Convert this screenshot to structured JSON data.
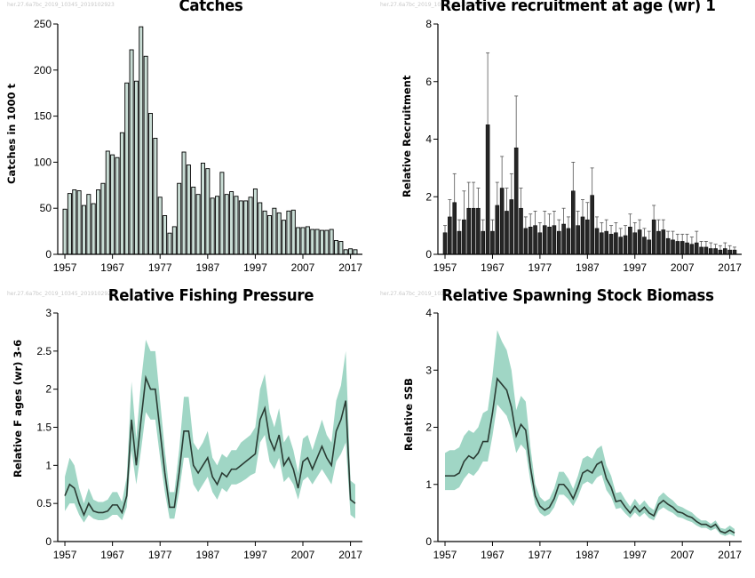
{
  "watermark": "her.27.6a7bc_2019_10345_2019102923",
  "chart_data": [
    {
      "id": "catches",
      "type": "bar",
      "title": "Catches",
      "ylabel": "Catches in 1000 t",
      "xlabel": "",
      "ylim": [
        0,
        250
      ],
      "yticks": [
        "0",
        "50",
        "100",
        "150",
        "200",
        "250"
      ],
      "xticks": [
        "1957",
        "1967",
        "1977",
        "1987",
        "1997",
        "2007",
        "2017"
      ],
      "x": [
        1957,
        1958,
        1959,
        1960,
        1961,
        1962,
        1963,
        1964,
        1965,
        1966,
        1967,
        1968,
        1969,
        1970,
        1971,
        1972,
        1973,
        1974,
        1975,
        1976,
        1977,
        1978,
        1979,
        1980,
        1981,
        1982,
        1983,
        1984,
        1985,
        1986,
        1987,
        1988,
        1989,
        1990,
        1991,
        1992,
        1993,
        1994,
        1995,
        1996,
        1997,
        1998,
        1999,
        2000,
        2001,
        2002,
        2003,
        2004,
        2005,
        2006,
        2007,
        2008,
        2009,
        2010,
        2011,
        2012,
        2013,
        2014,
        2015,
        2016,
        2017,
        2018
      ],
      "values": [
        49,
        66,
        70,
        69,
        53,
        65,
        55,
        70,
        77,
        112,
        108,
        105,
        132,
        186,
        222,
        188,
        247,
        215,
        153,
        126,
        62,
        42,
        23,
        30,
        77,
        111,
        97,
        73,
        65,
        99,
        93,
        61,
        63,
        89,
        65,
        68,
        63,
        58,
        58,
        62,
        71,
        56,
        47,
        42,
        50,
        45,
        37,
        47,
        48,
        29,
        29,
        30,
        27,
        27,
        26,
        26,
        27,
        15,
        14,
        5,
        6,
        5
      ],
      "color": "#0a0a0a"
    },
    {
      "id": "recruitment",
      "type": "bar",
      "title": "Relative recruitment at age (wr) 1",
      "ylabel": "Relative Recruitment",
      "xlabel": "",
      "ylim": [
        0,
        8
      ],
      "yticks": [
        "0",
        "2",
        "4",
        "6",
        "8"
      ],
      "xticks": [
        "1957",
        "1967",
        "1977",
        "1987",
        "1997",
        "2007",
        "2017"
      ],
      "x": [
        1957,
        1958,
        1959,
        1960,
        1961,
        1962,
        1963,
        1964,
        1965,
        1966,
        1967,
        1968,
        1969,
        1970,
        1971,
        1972,
        1973,
        1974,
        1975,
        1976,
        1977,
        1978,
        1979,
        1980,
        1981,
        1982,
        1983,
        1984,
        1985,
        1986,
        1987,
        1988,
        1989,
        1990,
        1991,
        1992,
        1993,
        1994,
        1995,
        1996,
        1997,
        1998,
        1999,
        2000,
        2001,
        2002,
        2003,
        2004,
        2005,
        2006,
        2007,
        2008,
        2009,
        2010,
        2011,
        2012,
        2013,
        2014,
        2015,
        2016,
        2017,
        2018
      ],
      "values": [
        0.75,
        1.3,
        1.8,
        0.8,
        1.2,
        1.6,
        1.6,
        1.6,
        0.8,
        4.5,
        0.8,
        1.7,
        2.3,
        1.5,
        1.9,
        3.7,
        1.6,
        0.9,
        0.95,
        1.0,
        0.75,
        1.0,
        0.95,
        1.0,
        0.8,
        1.05,
        0.9,
        2.2,
        1.0,
        1.3,
        1.2,
        2.05,
        0.9,
        0.75,
        0.8,
        0.7,
        0.75,
        0.6,
        0.65,
        0.95,
        0.75,
        0.85,
        0.6,
        0.5,
        1.2,
        0.8,
        0.85,
        0.55,
        0.5,
        0.45,
        0.45,
        0.4,
        0.35,
        0.4,
        0.25,
        0.25,
        0.2,
        0.2,
        0.15,
        0.2,
        0.15,
        0.15
      ],
      "upper": [
        1.0,
        1.9,
        2.8,
        1.2,
        2.2,
        2.5,
        2.5,
        2.3,
        1.2,
        7.0,
        1.2,
        2.5,
        3.4,
        2.3,
        2.8,
        5.5,
        2.3,
        1.3,
        1.4,
        1.5,
        1.1,
        1.5,
        1.4,
        1.5,
        1.2,
        1.6,
        1.3,
        3.2,
        1.5,
        1.9,
        1.8,
        3.0,
        1.3,
        1.1,
        1.2,
        1.0,
        1.1,
        0.9,
        1.0,
        1.4,
        1.1,
        1.2,
        0.9,
        0.8,
        1.7,
        1.2,
        1.2,
        0.8,
        0.8,
        0.7,
        0.7,
        0.7,
        0.6,
        0.8,
        0.45,
        0.45,
        0.4,
        0.35,
        0.3,
        0.4,
        0.3,
        0.25
      ],
      "color": "#1a1a1a"
    },
    {
      "id": "fishing",
      "type": "area",
      "title": "Relative Fishing Pressure",
      "ylabel": "Relative F ages (wr) 3-6",
      "xlabel": "",
      "ylim": [
        0,
        3
      ],
      "yticks": [
        "0",
        "0.5",
        "1",
        "1.5",
        "2",
        "2.5",
        "3"
      ],
      "xticks": [
        "1957",
        "1967",
        "1977",
        "1987",
        "1997",
        "2007",
        "2017"
      ],
      "x": [
        1957,
        1958,
        1959,
        1960,
        1961,
        1962,
        1963,
        1964,
        1965,
        1966,
        1967,
        1968,
        1969,
        1970,
        1971,
        1972,
        1973,
        1974,
        1975,
        1976,
        1977,
        1978,
        1979,
        1980,
        1981,
        1982,
        1983,
        1984,
        1985,
        1986,
        1987,
        1988,
        1989,
        1990,
        1991,
        1992,
        1993,
        1994,
        1995,
        1996,
        1997,
        1998,
        1999,
        2000,
        2001,
        2002,
        2003,
        2004,
        2005,
        2006,
        2007,
        2008,
        2009,
        2010,
        2011,
        2012,
        2013,
        2014,
        2015,
        2016,
        2017,
        2018
      ],
      "values": [
        0.6,
        0.75,
        0.7,
        0.5,
        0.35,
        0.5,
        0.4,
        0.38,
        0.38,
        0.4,
        0.48,
        0.48,
        0.38,
        0.6,
        1.6,
        1.0,
        1.6,
        2.15,
        2.0,
        2.0,
        1.45,
        0.9,
        0.45,
        0.45,
        0.9,
        1.45,
        1.45,
        1.0,
        0.9,
        1.0,
        1.1,
        0.85,
        0.75,
        0.9,
        0.85,
        0.95,
        0.95,
        1.0,
        1.05,
        1.1,
        1.15,
        1.6,
        1.75,
        1.35,
        1.2,
        1.4,
        1.0,
        1.1,
        0.95,
        0.7,
        1.05,
        1.1,
        0.95,
        1.1,
        1.25,
        1.1,
        1.0,
        1.45,
        1.6,
        1.85,
        0.55,
        0.5
      ],
      "lower": [
        0.4,
        0.5,
        0.5,
        0.35,
        0.25,
        0.35,
        0.3,
        0.28,
        0.28,
        0.3,
        0.35,
        0.35,
        0.28,
        0.45,
        1.2,
        0.75,
        1.2,
        1.7,
        1.6,
        1.6,
        1.1,
        0.65,
        0.3,
        0.3,
        0.65,
        1.1,
        1.1,
        0.75,
        0.65,
        0.75,
        0.85,
        0.65,
        0.55,
        0.7,
        0.65,
        0.75,
        0.75,
        0.78,
        0.82,
        0.87,
        0.9,
        1.3,
        1.4,
        1.05,
        0.95,
        1.1,
        0.78,
        0.85,
        0.75,
        0.55,
        0.8,
        0.85,
        0.75,
        0.85,
        0.95,
        0.85,
        0.75,
        1.05,
        1.15,
        1.3,
        0.35,
        0.3
      ],
      "upper": [
        0.85,
        1.1,
        1.0,
        0.7,
        0.5,
        0.7,
        0.55,
        0.52,
        0.52,
        0.55,
        0.65,
        0.65,
        0.52,
        0.85,
        2.1,
        1.35,
        2.1,
        2.65,
        2.5,
        2.5,
        1.85,
        1.2,
        0.65,
        0.65,
        1.2,
        1.9,
        1.9,
        1.3,
        1.2,
        1.3,
        1.45,
        1.1,
        1.0,
        1.15,
        1.1,
        1.2,
        1.2,
        1.3,
        1.35,
        1.4,
        1.5,
        2.0,
        2.2,
        1.7,
        1.5,
        1.75,
        1.3,
        1.4,
        1.2,
        0.9,
        1.35,
        1.4,
        1.2,
        1.4,
        1.6,
        1.4,
        1.3,
        1.85,
        2.05,
        2.5,
        0.8,
        0.75
      ],
      "color": "#2a3b33",
      "band_color": "#9bd4c2"
    },
    {
      "id": "ssb",
      "type": "area",
      "title": "Relative Spawning Stock Biomass",
      "ylabel": "Relative SSB",
      "xlabel": "",
      "ylim": [
        0,
        4
      ],
      "yticks": [
        "0",
        "1",
        "2",
        "3",
        "4"
      ],
      "xticks": [
        "1957",
        "1967",
        "1977",
        "1987",
        "1997",
        "2007",
        "2017"
      ],
      "x": [
        1957,
        1958,
        1959,
        1960,
        1961,
        1962,
        1963,
        1964,
        1965,
        1966,
        1967,
        1968,
        1969,
        1970,
        1971,
        1972,
        1973,
        1974,
        1975,
        1976,
        1977,
        1978,
        1979,
        1980,
        1981,
        1982,
        1983,
        1984,
        1985,
        1986,
        1987,
        1988,
        1989,
        1990,
        1991,
        1992,
        1993,
        1994,
        1995,
        1996,
        1997,
        1998,
        1999,
        2000,
        2001,
        2002,
        2003,
        2004,
        2005,
        2006,
        2007,
        2008,
        2009,
        2010,
        2011,
        2012,
        2013,
        2014,
        2015,
        2016,
        2017,
        2018
      ],
      "values": [
        1.15,
        1.15,
        1.15,
        1.2,
        1.4,
        1.5,
        1.45,
        1.55,
        1.75,
        1.75,
        2.25,
        2.85,
        2.75,
        2.65,
        2.35,
        1.85,
        2.05,
        1.95,
        1.3,
        0.8,
        0.62,
        0.55,
        0.6,
        0.75,
        1.0,
        1.0,
        0.9,
        0.75,
        0.95,
        1.2,
        1.25,
        1.2,
        1.35,
        1.4,
        1.1,
        0.95,
        0.7,
        0.72,
        0.6,
        0.5,
        0.62,
        0.52,
        0.6,
        0.5,
        0.45,
        0.65,
        0.72,
        0.65,
        0.6,
        0.52,
        0.5,
        0.45,
        0.42,
        0.35,
        0.3,
        0.3,
        0.25,
        0.3,
        0.18,
        0.15,
        0.2,
        0.15
      ],
      "lower": [
        0.9,
        0.9,
        0.9,
        0.95,
        1.1,
        1.2,
        1.15,
        1.25,
        1.4,
        1.4,
        1.85,
        2.4,
        2.3,
        2.2,
        1.95,
        1.55,
        1.7,
        1.6,
        1.05,
        0.65,
        0.5,
        0.44,
        0.48,
        0.6,
        0.82,
        0.82,
        0.74,
        0.62,
        0.78,
        1.0,
        1.05,
        1.0,
        1.12,
        1.17,
        0.9,
        0.78,
        0.57,
        0.59,
        0.49,
        0.41,
        0.51,
        0.43,
        0.5,
        0.41,
        0.37,
        0.54,
        0.6,
        0.54,
        0.5,
        0.43,
        0.41,
        0.37,
        0.34,
        0.28,
        0.24,
        0.24,
        0.19,
        0.23,
        0.13,
        0.1,
        0.13,
        0.09
      ],
      "upper": [
        1.55,
        1.6,
        1.6,
        1.65,
        1.85,
        1.95,
        1.9,
        2.0,
        2.25,
        2.3,
        2.9,
        3.7,
        3.5,
        3.35,
        3.0,
        2.3,
        2.55,
        2.45,
        1.65,
        1.0,
        0.78,
        0.7,
        0.75,
        0.93,
        1.22,
        1.22,
        1.1,
        0.92,
        1.15,
        1.45,
        1.5,
        1.45,
        1.62,
        1.68,
        1.33,
        1.15,
        0.85,
        0.87,
        0.73,
        0.61,
        0.75,
        0.63,
        0.72,
        0.61,
        0.55,
        0.78,
        0.86,
        0.78,
        0.72,
        0.63,
        0.6,
        0.55,
        0.51,
        0.43,
        0.37,
        0.37,
        0.31,
        0.37,
        0.24,
        0.22,
        0.28,
        0.22
      ],
      "color": "#2a3b33",
      "band_color": "#9bd4c2"
    }
  ]
}
